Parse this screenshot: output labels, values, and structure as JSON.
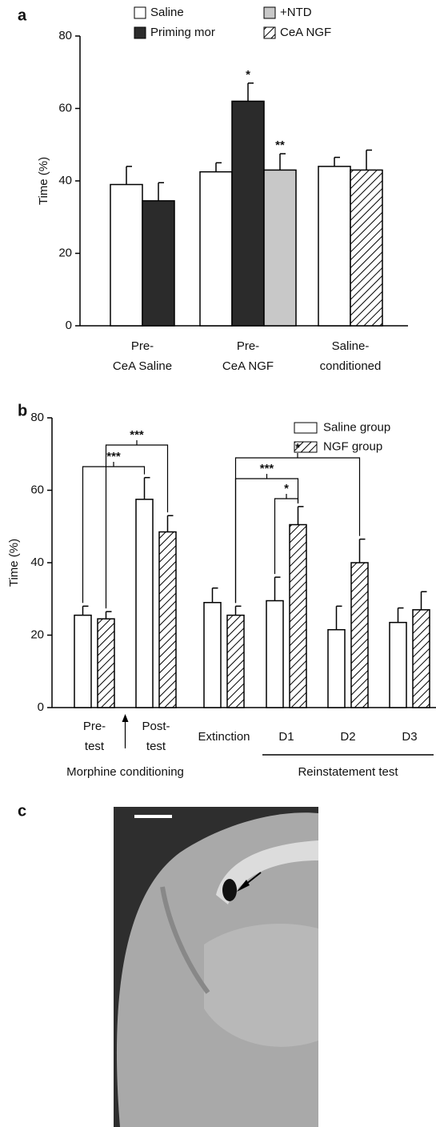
{
  "chart_data": [
    {
      "type": "bar",
      "label": "a",
      "ylabel": "Time (%)",
      "ylim": [
        0,
        80
      ],
      "yticks": [
        0,
        20,
        40,
        60,
        80
      ],
      "categories": [
        "Pre-\nCeA Saline",
        "Pre-\nCeA NGF",
        "Saline-\nconditioned"
      ],
      "series": [
        {
          "name": "Saline",
          "color": "#ffffff",
          "values": [
            39,
            42.5,
            44
          ],
          "errors": [
            5,
            2.5,
            2.5
          ]
        },
        {
          "name": "Priming mor",
          "color": "#2b2b2b",
          "values": [
            34.5,
            62,
            null
          ],
          "errors": [
            5,
            5,
            null
          ]
        },
        {
          "name": "+NTD",
          "color": "#c8c8c8",
          "values": [
            null,
            43,
            null
          ],
          "errors": [
            null,
            4.5,
            null
          ]
        },
        {
          "name": "CeA NGF",
          "color": "#000000",
          "hatch": true,
          "values": [
            null,
            null,
            43
          ],
          "errors": [
            null,
            null,
            5.5
          ]
        }
      ],
      "annotations": [
        {
          "text": "*",
          "category": 1,
          "series": 1
        },
        {
          "text": "**",
          "category": 1,
          "series": 2
        }
      ]
    },
    {
      "type": "bar",
      "label": "b",
      "ylabel": "Time (%)",
      "ylim": [
        0,
        80
      ],
      "yticks": [
        0,
        20,
        40,
        60,
        80
      ],
      "categories": [
        "Pre-\ntest",
        "Post-\ntest",
        "Extinction",
        "D1",
        "D2",
        "D3"
      ],
      "category_groups": [
        {
          "name": "Morphine conditioning",
          "from": 0,
          "to": 1
        },
        {
          "name": "Reinstatement test",
          "from": 3,
          "to": 5
        }
      ],
      "series": [
        {
          "name": "Saline group",
          "color": "#ffffff",
          "values": [
            25.5,
            57.5,
            29,
            29.5,
            21.5,
            23.5
          ],
          "errors": [
            2.5,
            6,
            4,
            6.5,
            6.5,
            4
          ]
        },
        {
          "name": "NGF group",
          "color": "#000000",
          "hatch": true,
          "values": [
            24.5,
            48.5,
            25.5,
            50.5,
            40,
            27
          ],
          "errors": [
            2,
            4.5,
            2.5,
            5,
            6.5,
            5
          ]
        }
      ],
      "comparisons": [
        {
          "from": [
            0,
            0
          ],
          "to": [
            1,
            0
          ],
          "label": "***"
        },
        {
          "from": [
            0,
            1
          ],
          "to": [
            1,
            1
          ],
          "label": "***"
        },
        {
          "from": [
            2,
            1
          ],
          "to": [
            4,
            1
          ],
          "label": "*"
        },
        {
          "from": [
            2,
            1
          ],
          "to": [
            3,
            1
          ],
          "label": "***"
        },
        {
          "from": [
            3,
            0
          ],
          "to": [
            3,
            1
          ],
          "label": "*"
        }
      ]
    }
  ],
  "image_panel": {
    "label": "c"
  }
}
